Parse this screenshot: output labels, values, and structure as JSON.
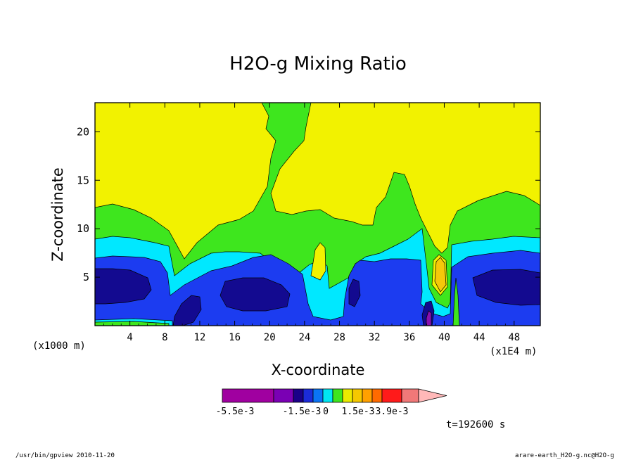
{
  "chart_data": {
    "type": "contour",
    "title": "H2O-g Mixing Ratio",
    "xlabel": "X-coordinate",
    "ylabel": "Z-coordinate",
    "x_unit_left": "(x1000 m)",
    "x_unit_right": "(x1E4 m)",
    "x_ticks": [
      "4",
      "8",
      "12",
      "16",
      "20",
      "24",
      "28",
      "32",
      "36",
      "40",
      "44",
      "48"
    ],
    "y_ticks": [
      "5",
      "10",
      "15",
      "20"
    ],
    "xlim": [
      0,
      51
    ],
    "ylim": [
      0,
      23
    ],
    "legend_labels": [
      "-5.5e-3",
      "-1.5e-3",
      "0",
      "1.5e-3",
      "3.9e-3"
    ],
    "legend_colors": [
      "#a000a0",
      "#7a00b4",
      "#1a0088",
      "#1b2bd8",
      "#0a74f5",
      "#00e6f2",
      "#3ee61e",
      "#eaea00",
      "#f5c800",
      "#ffa000",
      "#ff6a00",
      "#ff1a1a",
      "#f07878",
      "#ffb8b8"
    ],
    "time_label": "t=192600 s",
    "colors": {
      "yellow": "#f2f200",
      "green": "#3ee61e",
      "cyan": "#00e8ff",
      "blue": "#1c3cf0",
      "darkblue": "#130a90",
      "orange": "#f5c80a",
      "purple": "#8a10b0"
    }
  },
  "footer": {
    "left": "/usr/bin/gpview  2010-11-20",
    "right": "arare-earth_H2O-g.nc@H2O-g"
  }
}
